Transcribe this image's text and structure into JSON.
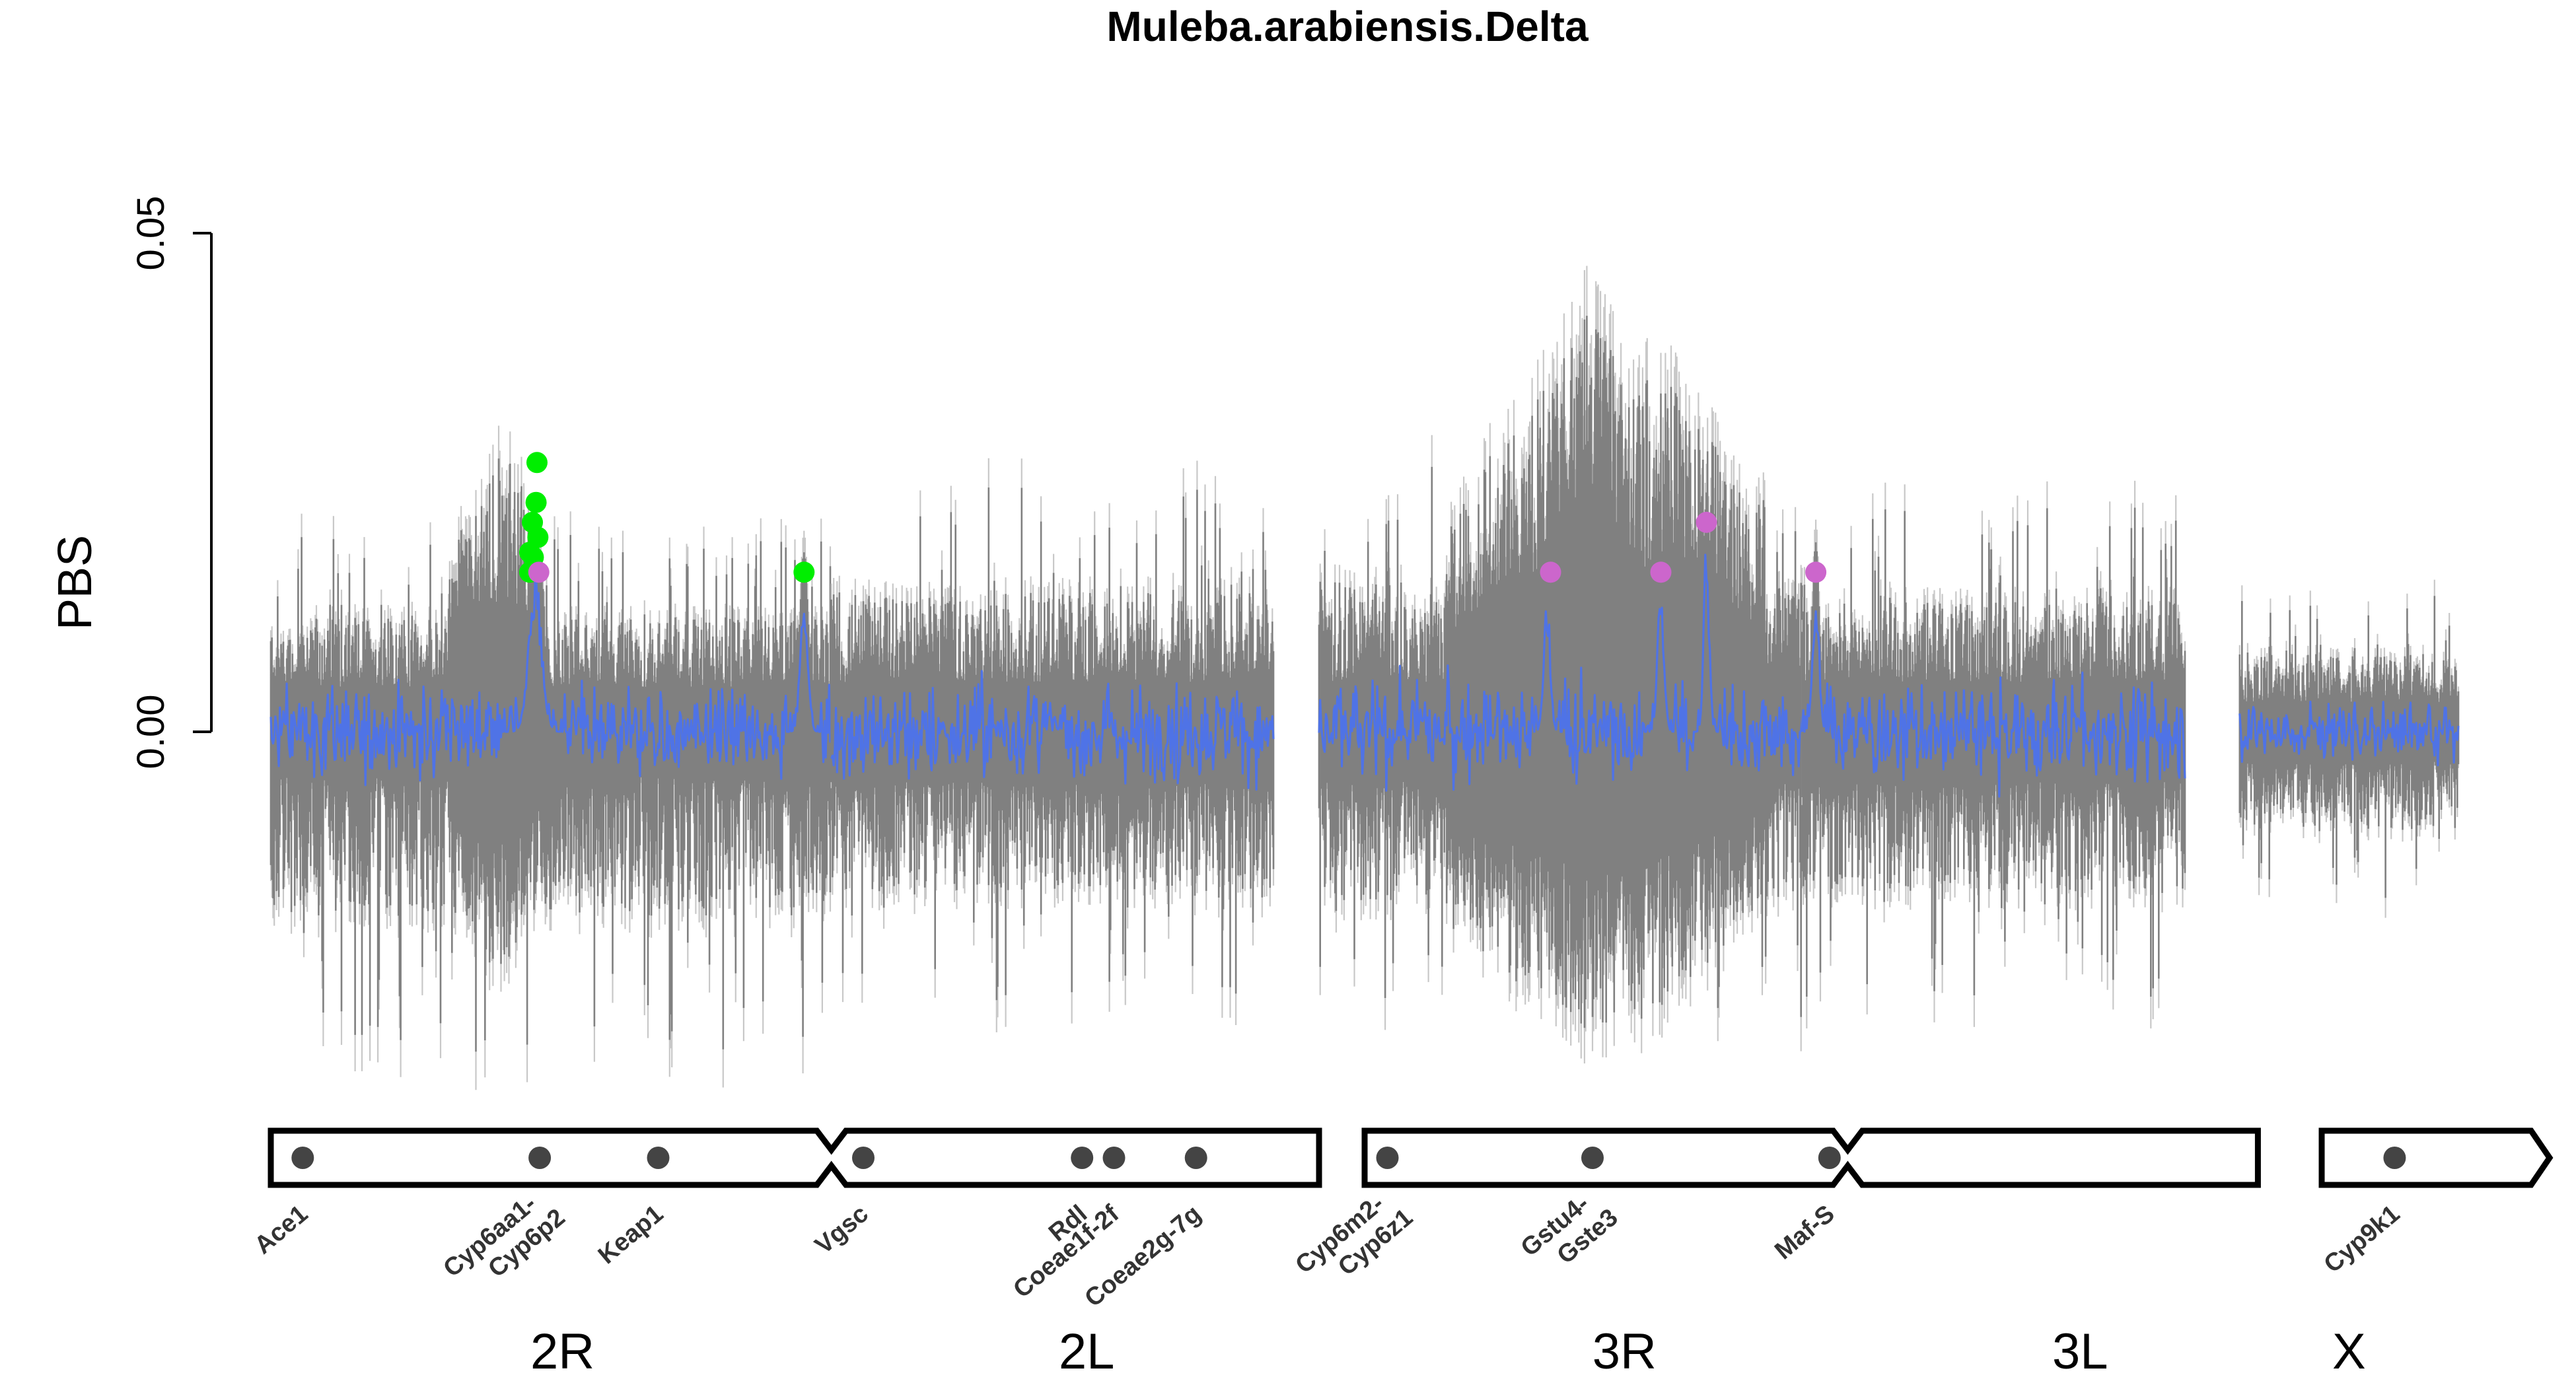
{
  "chart_data": {
    "type": "line",
    "title": "Muleba.arabiensis.Delta",
    "ylabel": "PBS",
    "xlabel": "",
    "ylim": [
      -0.045,
      0.065
    ],
    "yticks": [
      {
        "value": 0.0,
        "label": "0.00"
      },
      {
        "value": 0.05,
        "label": "0.05"
      }
    ],
    "colors": {
      "line": "#4f73e6",
      "ci": "#808080",
      "ci_outer": "#c8c8c8",
      "peak_green": "#00ee00",
      "peak_violet": "#cc66cc",
      "gene_marker": "#444444",
      "outline": "#000000"
    },
    "chromosomes": [
      {
        "name": "2R",
        "start": 0,
        "end": 61.5,
        "band": 0.0045,
        "lower_noise": 0.014,
        "upper_noise": 0.007
      },
      {
        "name": "2L",
        "start": 61.5,
        "end": 110.0,
        "band": 0.005,
        "lower_noise": 0.011,
        "upper_noise": 0.009
      },
      {
        "name": "3R",
        "start": 115.0,
        "end": 168.0,
        "band": 0.005,
        "lower_noise": 0.012,
        "upper_noise": 0.01
      },
      {
        "name": "3L",
        "start": 168.0,
        "end": 210.0,
        "band": 0.005,
        "lower_noise": 0.011,
        "upper_noise": 0.008
      },
      {
        "name": "X",
        "start": 216.0,
        "end": 240.0,
        "band": 0.003,
        "lower_noise": 0.007,
        "upper_noise": 0.005
      }
    ],
    "wide_regions": [
      {
        "x0": 19.5,
        "x1": 30.5,
        "upper": 0.028,
        "lower": -0.024
      },
      {
        "x0": 129.0,
        "x1": 164.0,
        "upper": 0.038,
        "lower": -0.03
      },
      {
        "x0": 139.0,
        "x1": 150.0,
        "upper": 0.045,
        "lower": -0.028
      }
    ],
    "signal_peaks": [
      {
        "x": 29.0,
        "height": 0.016,
        "width": 1.2
      },
      {
        "x": 58.5,
        "height": 0.014,
        "width": 0.7
      },
      {
        "x": 140.0,
        "height": 0.014,
        "width": 0.6
      },
      {
        "x": 152.5,
        "height": 0.015,
        "width": 0.6
      },
      {
        "x": 157.5,
        "height": 0.02,
        "width": 0.5
      },
      {
        "x": 169.5,
        "height": 0.015,
        "width": 0.6
      }
    ],
    "highlighted_points": [
      {
        "x": 29.2,
        "y": 0.027,
        "group": "green"
      },
      {
        "x": 29.1,
        "y": 0.023,
        "group": "green"
      },
      {
        "x": 28.7,
        "y": 0.021,
        "group": "green"
      },
      {
        "x": 29.3,
        "y": 0.0195,
        "group": "green"
      },
      {
        "x": 28.4,
        "y": 0.018,
        "group": "green"
      },
      {
        "x": 28.8,
        "y": 0.0175,
        "group": "green"
      },
      {
        "x": 28.4,
        "y": 0.016,
        "group": "green"
      },
      {
        "x": 58.5,
        "y": 0.016,
        "group": "green"
      },
      {
        "x": 29.4,
        "y": 0.016,
        "group": "violet"
      },
      {
        "x": 140.4,
        "y": 0.016,
        "group": "violet"
      },
      {
        "x": 152.5,
        "y": 0.016,
        "group": "violet"
      },
      {
        "x": 157.5,
        "y": 0.021,
        "group": "violet"
      },
      {
        "x": 169.5,
        "y": 0.016,
        "group": "violet"
      }
    ],
    "genes": [
      {
        "name": "Ace1",
        "x": 3.5
      },
      {
        "name": "Cyp6aa1-\nCyp6p2",
        "x": 29.5
      },
      {
        "name": "Keap1",
        "x": 42.5
      },
      {
        "name": "Vgsc",
        "x": 65.0
      },
      {
        "name": "Rdl",
        "x": 89.0
      },
      {
        "name": "Coeae1f-2f",
        "x": 92.5
      },
      {
        "name": "Coeae2g-7g",
        "x": 101.5
      },
      {
        "name": "Cyp6m2-\nCyp6z1",
        "x": 122.5
      },
      {
        "name": "Gstu4-\nGste3",
        "x": 145.0
      },
      {
        "name": "Maf-S",
        "x": 171.0
      },
      {
        "name": "Cyp9k1",
        "x": 233.0
      }
    ],
    "chromosome_labels": [
      {
        "name": "2R",
        "x": 32.0
      },
      {
        "name": "2L",
        "x": 89.5
      },
      {
        "name": "3R",
        "x": 148.5
      },
      {
        "name": "3L",
        "x": 198.5
      },
      {
        "name": "X",
        "x": 228.0
      }
    ],
    "ideogram": [
      {
        "arm": "2R-2L",
        "x0": 0,
        "mid": 61.5,
        "x1": 115.0
      },
      {
        "arm": "3R-3L",
        "x0": 120.0,
        "mid": 173.0,
        "x1": 218.0
      },
      {
        "arm": "X",
        "x0": 225.0,
        "x1": 250.0
      }
    ]
  }
}
